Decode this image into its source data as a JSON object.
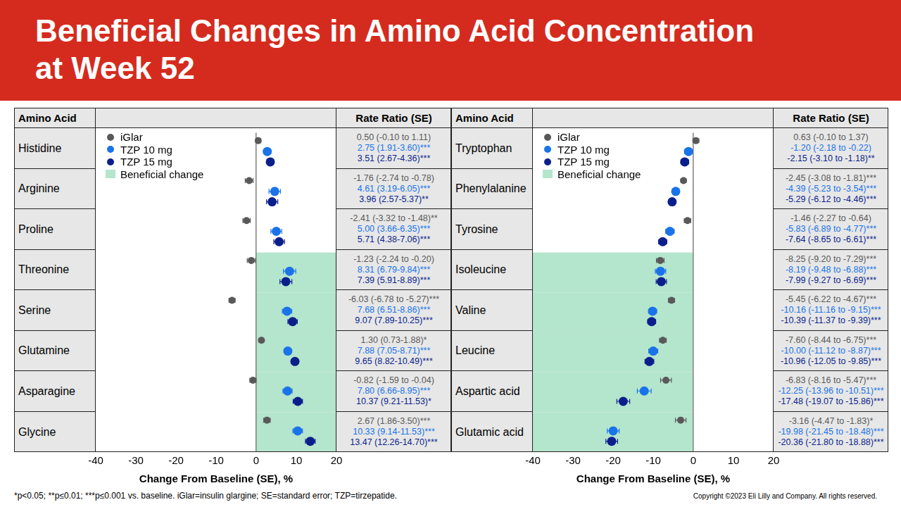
{
  "title": "Beneficial Changes in Amino Acid Concentration at Week 52",
  "footnote": "*p<0.05; **p≤0.01; ***p≤0.001 vs. baseline. iGlar=insulin glargine; SE=standard error; TZP=tirzepatide.",
  "copyright": "Copyright ©2023 Eli Lilly and Company. All rights reserved.",
  "chart_data": [
    {
      "type": "scatter",
      "row_header": "Amino Acid",
      "value_header": "Rate Ratio (SE)",
      "x_label": "Change From Baseline (SE), %",
      "xlim": [
        -40,
        20
      ],
      "xticks": [
        -40,
        -30,
        -20,
        -10,
        0,
        10,
        20
      ],
      "grid": false,
      "legend": "top-left",
      "categories": [
        "Histidine",
        "Arginine",
        "Proline",
        "Threonine",
        "Serine",
        "Glutamine",
        "Asparagine",
        "Glycine"
      ],
      "series": [
        {
          "name": "iGlar",
          "color": "#595959",
          "values": [
            0.5,
            -1.76,
            -2.41,
            -1.23,
            -6.03,
            1.3,
            -0.82,
            2.67
          ],
          "ci_low": [
            -0.1,
            -2.74,
            -3.32,
            -2.24,
            -6.78,
            0.73,
            -1.59,
            1.86
          ],
          "ci_high": [
            1.11,
            -0.78,
            -1.48,
            -0.2,
            -5.27,
            1.88,
            -0.04,
            3.5
          ],
          "value_labels": [
            "0.50 (-0.10 to 1.11)",
            "-1.76 (-2.74 to -0.78)",
            "-2.41 (-3.32 to -1.48)**",
            "-1.23 (-2.24 to -0.20)",
            "-6.03 (-6.78 to -5.27)***",
            "1.30 (0.73-1.88)*",
            "-0.82 (-1.59 to -0.04)",
            "2.67 (1.86-3.50)***"
          ]
        },
        {
          "name": "TZP 10 mg",
          "color": "#1a73e8",
          "values": [
            2.75,
            4.61,
            5.0,
            8.31,
            7.68,
            7.88,
            7.8,
            10.33
          ],
          "ci_low": [
            1.91,
            3.19,
            3.66,
            6.79,
            6.51,
            7.05,
            6.66,
            9.14
          ],
          "ci_high": [
            3.6,
            6.05,
            6.35,
            9.84,
            8.86,
            8.71,
            8.95,
            11.53
          ],
          "value_labels": [
            "2.75 (1.91-3.60)***",
            "4.61 (3.19-6.05)***",
            "5.00 (3.66-6.35)***",
            "8.31 (6.79-9.84)***",
            "7.68 (6.51-8.86)***",
            "7.88 (7.05-8.71)***",
            "7.80 (6.66-8.95)***",
            "10.33 (9.14-11.53)***"
          ]
        },
        {
          "name": "TZP 15 mg",
          "color": "#0b1f8c",
          "values": [
            3.51,
            3.96,
            5.71,
            7.39,
            9.07,
            9.65,
            10.37,
            13.47
          ],
          "ci_low": [
            2.67,
            2.57,
            4.38,
            5.91,
            7.89,
            8.82,
            9.21,
            12.26
          ],
          "ci_high": [
            4.36,
            5.37,
            7.06,
            8.89,
            10.25,
            10.49,
            11.53,
            14.7
          ],
          "value_labels": [
            "3.51 (2.67-4.36)***",
            "3.96 (2.57-5.37)**",
            "5.71 (4.38-7.06)***",
            "7.39 (5.91-8.89)***",
            "9.07 (7.89-10.25)***",
            "9.65 (8.82-10.49)***",
            "10.37 (9.21-11.53)*",
            "13.47 (12.26-14.70)***"
          ]
        }
      ],
      "beneficial": {
        "name": "Beneficial change",
        "color": "#b4e5cd",
        "range": [
          0,
          20
        ],
        "categories": [
          "Threonine",
          "Serine",
          "Glutamine",
          "Asparagine",
          "Glycine"
        ]
      }
    },
    {
      "type": "scatter",
      "row_header": "Amino Acid",
      "value_header": "Rate Ratio (SE)",
      "x_label": "Change From Baseline (SE), %",
      "xlim": [
        -40,
        20
      ],
      "xticks": [
        -40,
        -30,
        -20,
        -10,
        0,
        10,
        20
      ],
      "grid": false,
      "legend": "top-left",
      "categories": [
        "Tryptophan",
        "Phenylalanine",
        "Tyrosine",
        "Isoleucine",
        "Valine",
        "Leucine",
        "Aspartic acid",
        "Glutamic acid"
      ],
      "series": [
        {
          "name": "iGlar",
          "color": "#595959",
          "values": [
            0.63,
            -2.45,
            -1.46,
            -8.25,
            -5.45,
            -7.6,
            -6.83,
            -3.16
          ],
          "ci_low": [
            -0.1,
            -3.08,
            -2.27,
            -9.2,
            -6.22,
            -8.44,
            -8.16,
            -4.47
          ],
          "ci_high": [
            1.37,
            -1.81,
            -0.64,
            -7.29,
            -4.67,
            -6.75,
            -5.47,
            -1.83
          ],
          "value_labels": [
            "0.63 (-0.10 to 1.37)",
            "-2.45 (-3.08 to -1.81)***",
            "-1.46 (-2.27 to -0.64)",
            "-8.25 (-9.20 to -7.29)***",
            "-5.45 (-6.22 to -4.67)***",
            "-7.60 (-8.44 to -6.75)***",
            "-6.83 (-8.16 to -5.47)***",
            "-3.16 (-4.47 to -1.83)*"
          ]
        },
        {
          "name": "TZP 10 mg",
          "color": "#1a73e8",
          "values": [
            -1.2,
            -4.39,
            -5.83,
            -8.19,
            -10.16,
            -10.0,
            -12.25,
            -19.98
          ],
          "ci_low": [
            -2.18,
            -5.23,
            -6.89,
            -9.48,
            -11.16,
            -11.12,
            -13.96,
            -21.45
          ],
          "ci_high": [
            -0.22,
            -3.54,
            -4.77,
            -6.88,
            -9.15,
            -8.87,
            -10.51,
            -18.48
          ],
          "value_labels": [
            "-1.20 (-2.18 to -0.22)",
            "-4.39 (-5.23 to -3.54)***",
            "-5.83 (-6.89 to -4.77)***",
            "-8.19 (-9.48 to -6.88)***",
            "-10.16 (-11.16 to -9.15)***",
            "-10.00 (-11.12 to -8.87)***",
            "-12.25 (-13.96 to -10.51)***",
            "-19.98 (-21.45 to -18.48)***"
          ]
        },
        {
          "name": "TZP 15 mg",
          "color": "#0b1f8c",
          "values": [
            -2.15,
            -5.29,
            -7.64,
            -7.99,
            -10.39,
            -10.96,
            -17.48,
            -20.36
          ],
          "ci_low": [
            -3.1,
            -6.12,
            -8.65,
            -9.27,
            -11.37,
            -12.05,
            -19.07,
            -21.8
          ],
          "ci_high": [
            -1.18,
            -4.46,
            -6.61,
            -6.69,
            -9.39,
            -9.85,
            -15.86,
            -18.88
          ],
          "value_labels": [
            "-2.15 (-3.10 to -1.18)**",
            "-5.29 (-6.12 to -4.46)***",
            "-7.64 (-8.65 to -6.61)***",
            "-7.99 (-9.27 to -6.69)***",
            "-10.39 (-11.37 to -9.39)***",
            "-10.96 (-12.05 to -9.85)***",
            "-17.48 (-19.07 to -15.86)***",
            "-20.36 (-21.80 to -18.88)***"
          ]
        }
      ],
      "beneficial": {
        "name": "Beneficial change",
        "color": "#b4e5cd",
        "range": [
          -40,
          0
        ],
        "categories": [
          "Isoleucine",
          "Valine",
          "Leucine",
          "Aspartic acid",
          "Glutamic acid"
        ]
      }
    }
  ]
}
